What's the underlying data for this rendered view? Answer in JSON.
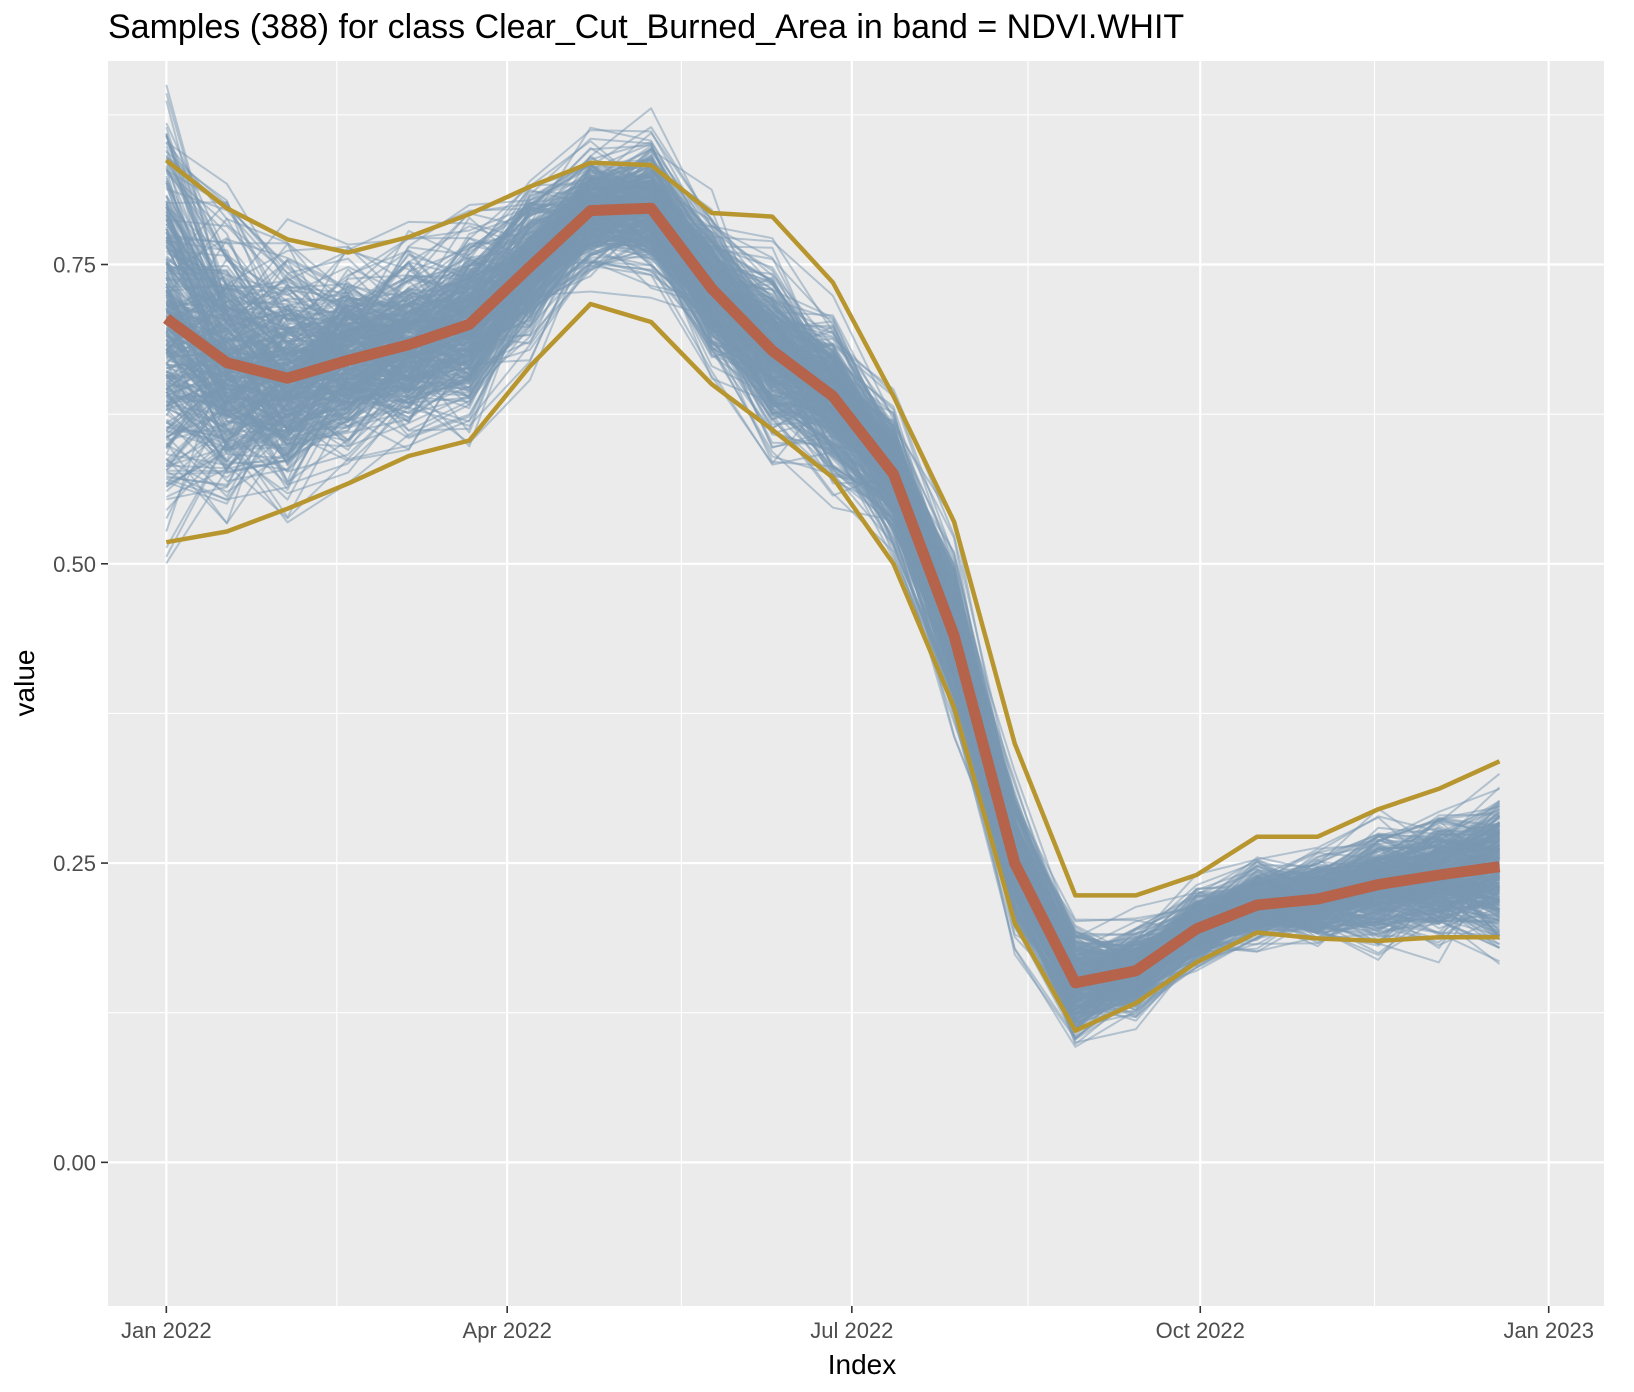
{
  "chart_data": {
    "type": "line",
    "title": "Samples (388) for class Clear_Cut_Burned_Area in band = NDVI.WHIT",
    "xlabel": "Index",
    "ylabel": "value",
    "x_ticks": [
      "Jan 2022",
      "Apr 2022",
      "Jul 2022",
      "Oct 2022",
      "Jan 2023"
    ],
    "y_ticks": [
      "0.00",
      "0.25",
      "0.50",
      "0.75"
    ],
    "ylim": [
      -0.12,
      0.92
    ],
    "grid": true,
    "sample_count": 388,
    "x": [
      "2022-01-01",
      "2022-01-17",
      "2022-02-02",
      "2022-02-18",
      "2022-03-06",
      "2022-03-22",
      "2022-04-07",
      "2022-04-23",
      "2022-05-09",
      "2022-05-25",
      "2022-06-10",
      "2022-06-26",
      "2022-07-12",
      "2022-07-28",
      "2022-08-13",
      "2022-08-29",
      "2022-09-14",
      "2022-09-30",
      "2022-10-16",
      "2022-11-01",
      "2022-11-17",
      "2022-12-03",
      "2022-12-19"
    ],
    "series": [
      {
        "role": "median",
        "color": "#b5634a",
        "values": [
          0.705,
          0.668,
          0.655,
          0.67,
          0.683,
          0.7,
          0.748,
          0.795,
          0.797,
          0.73,
          0.678,
          0.64,
          0.575,
          0.44,
          0.25,
          0.15,
          0.16,
          0.195,
          0.215,
          0.22,
          0.232,
          0.24,
          0.247
        ]
      },
      {
        "role": "quantile",
        "color": "#b8962f",
        "values": [
          0.837,
          0.797,
          0.771,
          0.76,
          0.773,
          0.792,
          0.815,
          0.835,
          0.833,
          0.793,
          0.79,
          0.735,
          0.64,
          0.535,
          0.35,
          0.223,
          0.223,
          0.24,
          0.272,
          0.272,
          0.295,
          0.312,
          0.335
        ]
      },
      {
        "role": "quantile",
        "color": "#b8962f",
        "values": [
          0.518,
          0.527,
          0.546,
          0.567,
          0.59,
          0.603,
          0.665,
          0.717,
          0.702,
          0.65,
          0.612,
          0.572,
          0.5,
          0.38,
          0.2,
          0.11,
          0.133,
          0.167,
          0.192,
          0.187,
          0.185,
          0.188,
          0.188
        ]
      }
    ]
  }
}
